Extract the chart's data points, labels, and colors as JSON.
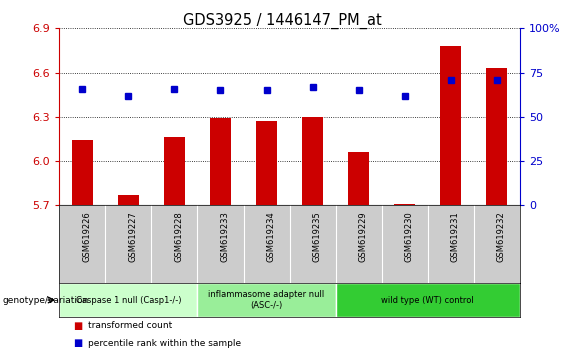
{
  "title": "GDS3925 / 1446147_PM_at",
  "samples": [
    "GSM619226",
    "GSM619227",
    "GSM619228",
    "GSM619233",
    "GSM619234",
    "GSM619235",
    "GSM619229",
    "GSM619230",
    "GSM619231",
    "GSM619232"
  ],
  "bar_values": [
    6.14,
    5.77,
    6.16,
    6.29,
    6.27,
    6.3,
    6.06,
    5.71,
    6.78,
    6.63
  ],
  "dot_values": [
    66,
    62,
    66,
    65,
    65,
    67,
    65,
    62,
    71,
    71
  ],
  "ylim_left": [
    5.7,
    6.9
  ],
  "ylim_right": [
    0,
    100
  ],
  "yticks_left": [
    5.7,
    6.0,
    6.3,
    6.6,
    6.9
  ],
  "yticks_right": [
    0,
    25,
    50,
    75,
    100
  ],
  "bar_color": "#cc0000",
  "dot_color": "#0000cc",
  "bar_bottom": 5.7,
  "groups": [
    {
      "label": "Caspase 1 null (Casp1-/-)",
      "start": 0,
      "end": 3,
      "color": "#ccffcc"
    },
    {
      "label": "inflammasome adapter null\n(ASC-/-)",
      "start": 3,
      "end": 6,
      "color": "#99ee99"
    },
    {
      "label": "wild type (WT) control",
      "start": 6,
      "end": 10,
      "color": "#33cc33"
    }
  ],
  "legend_bar_label": "transformed count",
  "legend_dot_label": "percentile rank within the sample",
  "xlabel_left": "genotype/variation",
  "tick_label_color_left": "#cc0000",
  "tick_label_color_right": "#0000cc",
  "label_bg_color": "#cccccc"
}
